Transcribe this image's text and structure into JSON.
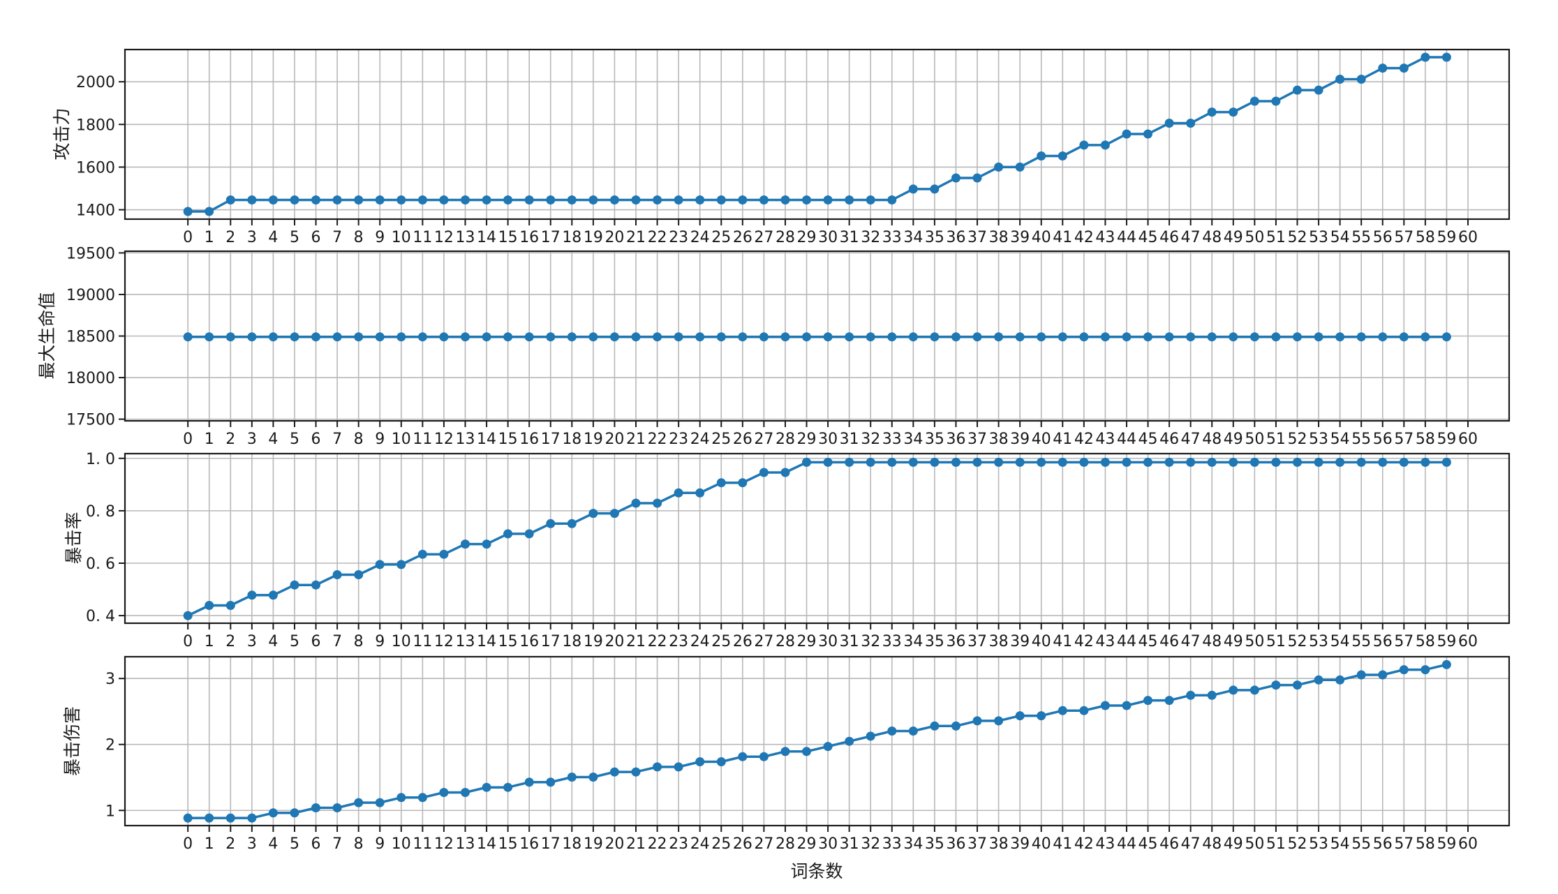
{
  "figure": {
    "xlabel": "词条数",
    "background": "#ffffff",
    "line_color": "#1f77b4",
    "marker_color": "#1f77b4",
    "grid_color": "#b8b8b8",
    "spine_color": "#1a1a1a",
    "tick_label_color": "#1a1a1a",
    "xlim": [
      -2.95,
      61.93
    ],
    "xticks": [
      0,
      1,
      2,
      3,
      4,
      5,
      6,
      7,
      8,
      9,
      10,
      11,
      12,
      13,
      14,
      15,
      16,
      17,
      18,
      19,
      20,
      21,
      22,
      23,
      24,
      25,
      26,
      27,
      28,
      29,
      30,
      31,
      32,
      33,
      34,
      35,
      36,
      37,
      38,
      39,
      40,
      41,
      42,
      43,
      44,
      45,
      46,
      47,
      48,
      49,
      50,
      51,
      52,
      53,
      54,
      55,
      56,
      57,
      58,
      59,
      60
    ]
  },
  "chart_data": [
    {
      "type": "line",
      "ylabel": "攻击力",
      "yticks": [
        1400,
        1600,
        1800,
        2000
      ],
      "ytick_labels": [
        "1400",
        "1600",
        "1800",
        "2000"
      ],
      "ylim": [
        1356,
        2151
      ],
      "x": [
        0,
        1,
        2,
        3,
        4,
        5,
        6,
        7,
        8,
        9,
        10,
        11,
        12,
        13,
        14,
        15,
        16,
        17,
        18,
        19,
        20,
        21,
        22,
        23,
        24,
        25,
        26,
        27,
        28,
        29,
        30,
        31,
        32,
        33,
        34,
        35,
        36,
        37,
        38,
        39,
        40,
        41,
        42,
        43,
        44,
        45,
        46,
        47,
        48,
        49,
        50,
        51,
        52,
        53,
        54,
        55,
        56,
        57,
        58,
        59
      ],
      "values": [
        1392,
        1392,
        1446,
        1446,
        1446,
        1446,
        1446,
        1446,
        1446,
        1446,
        1446,
        1446,
        1446,
        1446,
        1446,
        1446,
        1446,
        1446,
        1446,
        1446,
        1446,
        1446,
        1446,
        1446,
        1446,
        1446,
        1446,
        1446,
        1446,
        1446,
        1446,
        1446,
        1446,
        1446,
        1497,
        1497,
        1549,
        1549,
        1600,
        1600,
        1652,
        1652,
        1703,
        1703,
        1755,
        1755,
        1806,
        1806,
        1858,
        1858,
        1909,
        1909,
        1961,
        1961,
        2012,
        2012,
        2064,
        2064,
        2115,
        2115
      ]
    },
    {
      "type": "line",
      "ylabel": "最大生命值",
      "yticks": [
        17500,
        18000,
        18500,
        19000,
        19500
      ],
      "ytick_labels": [
        "17500",
        "18000",
        "18500",
        "19000",
        "19500"
      ],
      "ylim": [
        17480,
        19520
      ],
      "x": [
        0,
        1,
        2,
        3,
        4,
        5,
        6,
        7,
        8,
        9,
        10,
        11,
        12,
        13,
        14,
        15,
        16,
        17,
        18,
        19,
        20,
        21,
        22,
        23,
        24,
        25,
        26,
        27,
        28,
        29,
        30,
        31,
        32,
        33,
        34,
        35,
        36,
        37,
        38,
        39,
        40,
        41,
        42,
        43,
        44,
        45,
        46,
        47,
        48,
        49,
        50,
        51,
        52,
        53,
        54,
        55,
        56,
        57,
        58,
        59
      ],
      "values": [
        18490,
        18490,
        18490,
        18490,
        18490,
        18490,
        18490,
        18490,
        18490,
        18490,
        18490,
        18490,
        18490,
        18490,
        18490,
        18490,
        18490,
        18490,
        18490,
        18490,
        18490,
        18490,
        18490,
        18490,
        18490,
        18490,
        18490,
        18490,
        18490,
        18490,
        18490,
        18490,
        18490,
        18490,
        18490,
        18490,
        18490,
        18490,
        18490,
        18490,
        18490,
        18490,
        18490,
        18490,
        18490,
        18490,
        18490,
        18490,
        18490,
        18490,
        18490,
        18490,
        18490,
        18490,
        18490,
        18490,
        18490,
        18490,
        18490,
        18490
      ]
    },
    {
      "type": "line",
      "ylabel": "暴击率",
      "yticks": [
        0.4,
        0.6,
        0.8,
        1.0
      ],
      "ytick_labels": [
        "0. 4",
        "0. 6",
        "0. 8",
        "1. 0"
      ],
      "ylim": [
        0.371,
        1.018
      ],
      "x": [
        0,
        1,
        2,
        3,
        4,
        5,
        6,
        7,
        8,
        9,
        10,
        11,
        12,
        13,
        14,
        15,
        16,
        17,
        18,
        19,
        20,
        21,
        22,
        23,
        24,
        25,
        26,
        27,
        28,
        29,
        30,
        31,
        32,
        33,
        34,
        35,
        36,
        37,
        38,
        39,
        40,
        41,
        42,
        43,
        44,
        45,
        46,
        47,
        48,
        49,
        50,
        51,
        52,
        53,
        54,
        55,
        56,
        57,
        58,
        59
      ],
      "values": [
        0.4,
        0.439,
        0.439,
        0.478,
        0.478,
        0.517,
        0.517,
        0.556,
        0.556,
        0.595,
        0.595,
        0.634,
        0.634,
        0.673,
        0.673,
        0.712,
        0.712,
        0.751,
        0.751,
        0.79,
        0.79,
        0.829,
        0.829,
        0.868,
        0.868,
        0.907,
        0.907,
        0.946,
        0.946,
        0.985,
        0.985,
        0.985,
        0.985,
        0.985,
        0.985,
        0.985,
        0.985,
        0.985,
        0.985,
        0.985,
        0.985,
        0.985,
        0.985,
        0.985,
        0.985,
        0.985,
        0.985,
        0.985,
        0.985,
        0.985,
        0.985,
        0.985,
        0.985,
        0.985,
        0.985,
        0.985,
        0.985,
        0.985,
        0.985,
        0.985
      ]
    },
    {
      "type": "line",
      "ylabel": "暴击伤害",
      "yticks": [
        1,
        2,
        3
      ],
      "ytick_labels": [
        "1",
        "2",
        "3"
      ],
      "ylim": [
        0.77,
        3.33
      ],
      "x": [
        0,
        1,
        2,
        3,
        4,
        5,
        6,
        7,
        8,
        9,
        10,
        11,
        12,
        13,
        14,
        15,
        16,
        17,
        18,
        19,
        20,
        21,
        22,
        23,
        24,
        25,
        26,
        27,
        28,
        29,
        30,
        31,
        32,
        33,
        34,
        35,
        36,
        37,
        38,
        39,
        40,
        41,
        42,
        43,
        44,
        45,
        46,
        47,
        48,
        49,
        50,
        51,
        52,
        53,
        54,
        55,
        56,
        57,
        58,
        59
      ],
      "values": [
        0.885,
        0.885,
        0.885,
        0.885,
        0.963,
        0.963,
        1.04,
        1.04,
        1.118,
        1.118,
        1.195,
        1.195,
        1.273,
        1.273,
        1.35,
        1.35,
        1.428,
        1.428,
        1.505,
        1.505,
        1.583,
        1.583,
        1.66,
        1.66,
        1.738,
        1.738,
        1.815,
        1.815,
        1.893,
        1.893,
        1.97,
        2.048,
        2.125,
        2.203,
        2.203,
        2.28,
        2.28,
        2.358,
        2.358,
        2.435,
        2.435,
        2.513,
        2.513,
        2.59,
        2.59,
        2.668,
        2.668,
        2.745,
        2.745,
        2.823,
        2.823,
        2.9,
        2.9,
        2.978,
        2.978,
        3.055,
        3.055,
        3.133,
        3.133,
        3.21
      ]
    }
  ]
}
